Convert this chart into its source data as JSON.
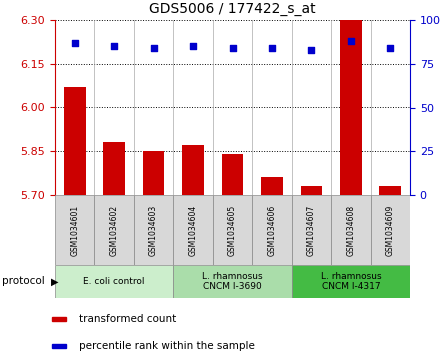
{
  "title": "GDS5006 / 177422_s_at",
  "samples": [
    "GSM1034601",
    "GSM1034602",
    "GSM1034603",
    "GSM1034604",
    "GSM1034605",
    "GSM1034606",
    "GSM1034607",
    "GSM1034608",
    "GSM1034609"
  ],
  "bar_values": [
    6.07,
    5.88,
    5.85,
    5.87,
    5.84,
    5.76,
    5.73,
    6.3,
    5.73
  ],
  "dot_values": [
    87,
    85,
    84,
    85,
    84,
    84,
    83,
    88,
    84
  ],
  "ylim_left": [
    5.7,
    6.3
  ],
  "ylim_right": [
    0,
    100
  ],
  "yticks_left": [
    5.7,
    5.85,
    6.0,
    6.15,
    6.3
  ],
  "yticks_right": [
    0,
    25,
    50,
    75,
    100
  ],
  "bar_color": "#cc0000",
  "dot_color": "#0000cc",
  "group_colors": [
    "#cceecc",
    "#aaddaa",
    "#44bb44"
  ],
  "group_labels": [
    "E. coli control",
    "L. rhamnosus\nCNCM I-3690",
    "L. rhamnosus\nCNCM I-4317"
  ],
  "group_starts": [
    0,
    3,
    6
  ],
  "group_ends": [
    3,
    6,
    9
  ],
  "legend_bar_label": "transformed count",
  "legend_dot_label": "percentile rank within the sample",
  "protocol_label": "protocol"
}
